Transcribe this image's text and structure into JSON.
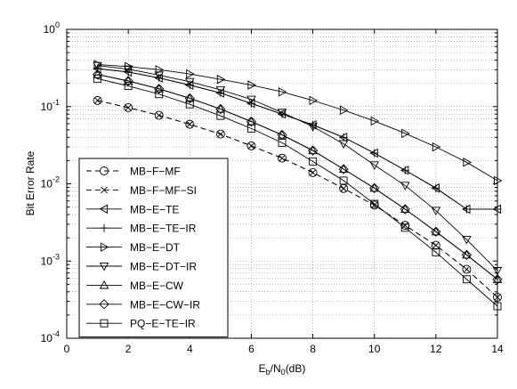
{
  "chart_data": {
    "type": "line",
    "xlabel": {
      "base": "E",
      "sub1": "b",
      "mid": "/N",
      "sub2": "0",
      "tail": "(dB)"
    },
    "ylabel": "Bit Error Rate",
    "xlim": [
      0,
      14
    ],
    "ylim": [
      0.0001,
      1
    ],
    "yscale": "log",
    "grid": true,
    "legend_position": "lower-left",
    "xticks": [
      "0",
      "2",
      "4",
      "6",
      "8",
      "10",
      "12",
      "14"
    ],
    "yticks": [
      {
        "base": "10",
        "exp": "0",
        "value": 1
      },
      {
        "base": "10",
        "exp": "-1",
        "value": 0.1
      },
      {
        "base": "10",
        "exp": "-2",
        "value": 0.01
      },
      {
        "base": "10",
        "exp": "-3",
        "value": 0.001
      },
      {
        "base": "10",
        "exp": "-4",
        "value": 0.0001
      }
    ],
    "x": [
      1,
      2,
      3,
      4,
      5,
      6,
      7,
      8,
      9,
      10,
      11,
      12,
      13,
      14
    ],
    "series": [
      {
        "name": "MB−F−MF",
        "marker": "circle",
        "dash": true,
        "values": [
          0.12,
          0.097,
          0.077,
          0.059,
          0.044,
          0.031,
          0.0215,
          0.014,
          0.0087,
          0.0053,
          0.0029,
          0.0016,
          0.00078,
          0.00034
        ]
      },
      {
        "name": "MB−F−MF−SI",
        "marker": "x",
        "dash": true,
        "values": [
          0.12,
          0.097,
          0.077,
          0.059,
          0.044,
          0.031,
          0.0215,
          0.014,
          0.0087,
          0.0053,
          0.0029,
          0.0016,
          0.00078,
          0.00034
        ]
      },
      {
        "name": "MB−E−TE",
        "marker": "triangle-left",
        "dash": false,
        "values": [
          0.31,
          0.28,
          0.235,
          0.19,
          0.15,
          0.11,
          0.08,
          0.058,
          0.04,
          0.025,
          0.015,
          0.0088,
          0.0047,
          0.0047
        ]
      },
      {
        "name": "MB−E−TE−IR",
        "marker": "plus",
        "dash": false,
        "values": [
          0.31,
          0.28,
          0.235,
          0.19,
          0.15,
          0.11,
          0.08,
          0.058,
          0.04,
          0.025,
          0.015,
          0.0088,
          0.0047,
          0.0047
        ]
      },
      {
        "name": "MB−E−DT",
        "marker": "triangle-right",
        "dash": false,
        "values": [
          0.35,
          0.33,
          0.3,
          0.265,
          0.225,
          0.19,
          0.155,
          0.12,
          0.09,
          0.065,
          0.045,
          0.03,
          0.019,
          0.011
        ]
      },
      {
        "name": "MB−E−DT−IR",
        "marker": "triangle-down",
        "dash": false,
        "values": [
          0.34,
          0.305,
          0.255,
          0.21,
          0.165,
          0.124,
          0.084,
          0.055,
          0.033,
          0.0175,
          0.0095,
          0.0045,
          0.0019,
          0.00075
        ]
      },
      {
        "name": "MB−E−CW",
        "marker": "triangle-up",
        "dash": false,
        "values": [
          0.26,
          0.215,
          0.17,
          0.128,
          0.093,
          0.064,
          0.043,
          0.027,
          0.0155,
          0.0088,
          0.0047,
          0.0024,
          0.0012,
          0.00058
        ]
      },
      {
        "name": "MB−E−CW−IR",
        "marker": "diamond",
        "dash": false,
        "values": [
          0.26,
          0.215,
          0.17,
          0.128,
          0.093,
          0.064,
          0.043,
          0.027,
          0.0155,
          0.0088,
          0.0047,
          0.0024,
          0.0012,
          0.00058
        ]
      },
      {
        "name": "PQ−E−TE−IR",
        "marker": "square",
        "dash": false,
        "values": [
          0.23,
          0.185,
          0.145,
          0.107,
          0.076,
          0.052,
          0.034,
          0.0195,
          0.011,
          0.0055,
          0.0027,
          0.0013,
          0.00058,
          0.00026
        ]
      }
    ]
  }
}
